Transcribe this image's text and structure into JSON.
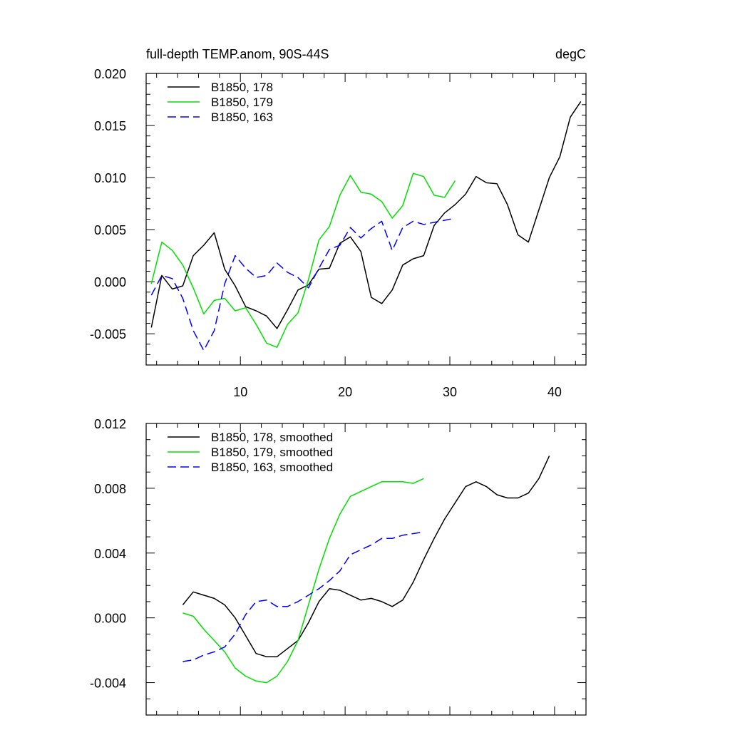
{
  "chart_data": [
    {
      "type": "line",
      "title": "full-depth TEMP.anom, 90S-44S",
      "units": "degC",
      "xlabel": "",
      "ylabel": "",
      "xlim": [
        1,
        43
      ],
      "ylim": [
        -0.008,
        0.02
      ],
      "xticks": [
        10,
        20,
        30,
        40
      ],
      "xtick_labels": [
        "10",
        "20",
        "30",
        "40"
      ],
      "yticks": [
        -0.005,
        0.0,
        0.005,
        0.01,
        0.015,
        0.02
      ],
      "ytick_labels": [
        "-0.005",
        "0.000",
        "0.005",
        "0.010",
        "0.015",
        "0.020"
      ],
      "legend": "top-left",
      "series": [
        {
          "name": "B1850, 178",
          "color": "#000000",
          "dash": "solid",
          "x": [
            1.5,
            2.5,
            3.5,
            4.5,
            5.5,
            6.5,
            7.5,
            8.5,
            9.5,
            10.5,
            11.5,
            12.5,
            13.5,
            14.5,
            15.5,
            16.5,
            17.5,
            18.5,
            19.5,
            20.5,
            21.5,
            22.5,
            23.5,
            24.5,
            25.5,
            26.5,
            27.5,
            28.5,
            29.5,
            30.5,
            31.5,
            32.5,
            33.5,
            34.5,
            35.5,
            36.5,
            37.5,
            38.5,
            39.5,
            40.5,
            41.5,
            42.5
          ],
          "values": [
            -0.0044,
            0.0006,
            -0.0007,
            -0.0004,
            0.0025,
            0.0035,
            0.0047,
            0.0012,
            -0.0004,
            -0.0024,
            -0.0028,
            -0.0033,
            -0.0045,
            -0.0027,
            -0.0008,
            -0.0003,
            0.0012,
            0.0013,
            0.0037,
            0.0043,
            0.0029,
            -0.0015,
            -0.0021,
            -0.0008,
            0.0016,
            0.0022,
            0.0025,
            0.0054,
            0.0066,
            0.0074,
            0.0084,
            0.0101,
            0.0095,
            0.0094,
            0.0074,
            0.0045,
            0.0038,
            0.0069,
            0.01,
            0.012,
            0.0158,
            0.0173
          ]
        },
        {
          "name": "B1850, 179",
          "color": "#00e000",
          "dash": "solid",
          "x": [
            1.5,
            2.5,
            3.5,
            4.5,
            5.5,
            6.5,
            7.5,
            8.5,
            9.5,
            10.5,
            11.5,
            12.5,
            13.5,
            14.5,
            15.5,
            16.5,
            17.5,
            18.5,
            19.5,
            20.5,
            21.5,
            22.5,
            23.5,
            24.5,
            25.5,
            26.5,
            27.5,
            28.5,
            29.5,
            30.5
          ],
          "values": [
            -0.0002,
            0.0038,
            0.003,
            0.0016,
            -0.0006,
            -0.0031,
            -0.0018,
            -0.0016,
            -0.0028,
            -0.0025,
            -0.0041,
            -0.0059,
            -0.0063,
            -0.0041,
            -0.003,
            0.0002,
            0.004,
            0.0053,
            0.0083,
            0.0102,
            0.0086,
            0.0084,
            0.0077,
            0.0061,
            0.0073,
            0.0104,
            0.0101,
            0.0083,
            0.0081,
            0.0097
          ]
        },
        {
          "name": "B1850, 163",
          "color": "#0000ff",
          "dash": "dashed",
          "x": [
            1.5,
            2.5,
            3.5,
            4.5,
            5.5,
            6.5,
            7.5,
            8.5,
            9.5,
            10.5,
            11.5,
            12.5,
            13.5,
            14.5,
            15.5,
            16.5,
            17.5,
            18.5,
            19.5,
            20.5,
            21.5,
            22.5,
            23.5,
            24.5,
            25.5,
            26.5,
            27.5,
            28.5,
            29.5,
            30.5
          ],
          "values": [
            -0.0013,
            0.0006,
            0.0003,
            -0.0016,
            -0.0047,
            -0.0066,
            -0.0047,
            -0.0002,
            0.0025,
            0.0013,
            0.0004,
            0.0006,
            0.0018,
            0.0009,
            0.0004,
            -0.0006,
            0.0013,
            0.0031,
            0.0035,
            0.0052,
            0.0042,
            0.0051,
            0.0058,
            0.003,
            0.0052,
            0.0058,
            0.0055,
            0.0057,
            0.0059,
            0.0061
          ]
        }
      ]
    },
    {
      "type": "line",
      "title": "",
      "xlabel": "",
      "ylabel": "",
      "xlim": [
        1,
        43
      ],
      "ylim": [
        -0.006,
        0.012
      ],
      "xticks": [
        10,
        20,
        30,
        40
      ],
      "yticks": [
        -0.004,
        0.0,
        0.004,
        0.008,
        0.012
      ],
      "ytick_labels": [
        "-0.004",
        "0.000",
        "0.004",
        "0.008",
        "0.012"
      ],
      "legend": "top-left",
      "series": [
        {
          "name": "B1850, 178, smoothed",
          "color": "#000000",
          "dash": "solid",
          "x": [
            4.5,
            5.5,
            6.5,
            7.5,
            8.5,
            9.5,
            10.5,
            11.5,
            12.5,
            13.5,
            14.5,
            15.5,
            16.5,
            17.5,
            18.5,
            19.5,
            20.5,
            21.5,
            22.5,
            23.5,
            24.5,
            25.5,
            26.5,
            27.5,
            28.5,
            29.5,
            30.5,
            31.5,
            32.5,
            33.5,
            34.5,
            35.5,
            36.5,
            37.5,
            38.5,
            39.5
          ],
          "values": [
            0.0008,
            0.0016,
            0.0014,
            0.0012,
            0.0008,
            0.0,
            -0.0011,
            -0.0022,
            -0.0024,
            -0.0024,
            -0.0019,
            -0.0014,
            -0.0003,
            0.001,
            0.0018,
            0.0017,
            0.0014,
            0.0011,
            0.0012,
            0.001,
            0.0007,
            0.0011,
            0.0022,
            0.0036,
            0.0049,
            0.0061,
            0.0071,
            0.0081,
            0.0084,
            0.0081,
            0.0076,
            0.0074,
            0.0074,
            0.0077,
            0.0086,
            0.01
          ]
        },
        {
          "name": "B1850, 179, smoothed",
          "color": "#00e000",
          "dash": "solid",
          "x": [
            4.5,
            5.5,
            6.5,
            7.5,
            8.5,
            9.5,
            10.5,
            11.5,
            12.5,
            13.5,
            14.5,
            15.5,
            16.5,
            17.5,
            18.5,
            19.5,
            20.5,
            21.5,
            22.5,
            23.5,
            24.5,
            25.5,
            26.5,
            27.5
          ],
          "values": [
            0.0003,
            0.0001,
            -0.0007,
            -0.0014,
            -0.0021,
            -0.0031,
            -0.0036,
            -0.0039,
            -0.004,
            -0.0036,
            -0.0027,
            -0.0014,
            0.0008,
            0.003,
            0.0049,
            0.0064,
            0.0075,
            0.0078,
            0.0081,
            0.0084,
            0.0084,
            0.0084,
            0.0083,
            0.0086
          ]
        },
        {
          "name": "B1850, 163, smoothed",
          "color": "#0000ff",
          "dash": "dashed",
          "x": [
            4.5,
            5.5,
            6.5,
            7.5,
            8.5,
            9.5,
            10.5,
            11.5,
            12.5,
            13.5,
            14.5,
            15.5,
            16.5,
            17.5,
            18.5,
            19.5,
            20.5,
            21.5,
            22.5,
            23.5,
            24.5,
            25.5,
            26.5,
            27.5
          ],
          "values": [
            -0.0027,
            -0.0026,
            -0.0023,
            -0.0021,
            -0.0018,
            -0.001,
            0.0002,
            0.001,
            0.0011,
            0.0007,
            0.0007,
            0.001,
            0.0014,
            0.0018,
            0.0023,
            0.0029,
            0.0039,
            0.0042,
            0.0045,
            0.0049,
            0.0049,
            0.0051,
            0.0052,
            0.0053
          ]
        }
      ]
    }
  ]
}
